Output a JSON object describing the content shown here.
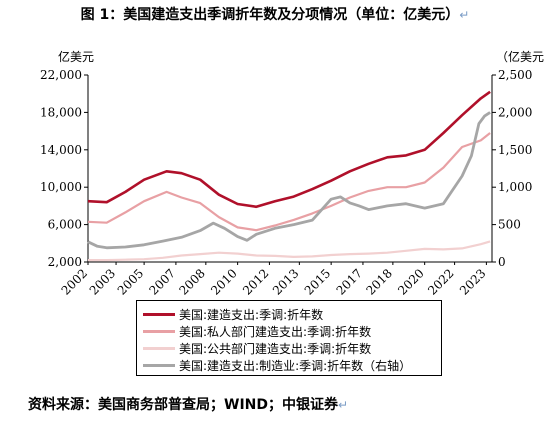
{
  "title": "图 1：美国建造支出季调折年数及分项情况（单位：亿美元）",
  "source": "资料来源：美国商务部普查局；WIND；中银证券",
  "para_mark": "↵",
  "chart_data": {
    "type": "line",
    "left_axis": {
      "unit": "亿美元",
      "range": [
        2000,
        22000
      ],
      "ticks": [
        2000,
        6000,
        10000,
        14000,
        18000,
        22000
      ],
      "tick_labels": [
        "2,000",
        "6,000",
        "10,000",
        "14,000",
        "18,000",
        "22,000"
      ]
    },
    "right_axis": {
      "unit": "（亿美元",
      "range": [
        0,
        2500
      ],
      "ticks": [
        0,
        500,
        1000,
        1500,
        2000,
        2500
      ],
      "tick_labels": [
        "0",
        "500",
        "1,000",
        "1,500",
        "2,000",
        "2,500"
      ]
    },
    "x_axis": {
      "range": [
        2002,
        2023.6
      ],
      "tick_labels": [
        "2002",
        "2003",
        "2005",
        "2007",
        "2008",
        "2010",
        "2012",
        "2013",
        "2015",
        "2017",
        "2018",
        "2020",
        "2022",
        "2023"
      ],
      "tick_positions": [
        2002,
        2003.5,
        2005,
        2006.7,
        2008.3,
        2010,
        2011.7,
        2013.3,
        2015,
        2016.7,
        2018.3,
        2020,
        2021.6,
        2023.3
      ]
    },
    "grid": false,
    "legend_position": "bottom",
    "series": [
      {
        "name": "美国:建造支出:季调:折年数",
        "color": "#b0102a",
        "axis": "left",
        "points": [
          [
            2002,
            8500
          ],
          [
            2003,
            8400
          ],
          [
            2004,
            9500
          ],
          [
            2005,
            10800
          ],
          [
            2006.2,
            11700
          ],
          [
            2007,
            11500
          ],
          [
            2008,
            10800
          ],
          [
            2009,
            9200
          ],
          [
            2010,
            8200
          ],
          [
            2011,
            7900
          ],
          [
            2012,
            8500
          ],
          [
            2013,
            9000
          ],
          [
            2014,
            9800
          ],
          [
            2015,
            10700
          ],
          [
            2016,
            11700
          ],
          [
            2017,
            12500
          ],
          [
            2018,
            13200
          ],
          [
            2019,
            13400
          ],
          [
            2020,
            14000
          ],
          [
            2021,
            15800
          ],
          [
            2022,
            17700
          ],
          [
            2023,
            19500
          ],
          [
            2023.5,
            20200
          ]
        ]
      },
      {
        "name": "美国:私人部门建造支出:季调:折年数",
        "color": "#e8a0a4",
        "axis": "left",
        "points": [
          [
            2002,
            6300
          ],
          [
            2003,
            6200
          ],
          [
            2004,
            7300
          ],
          [
            2005,
            8500
          ],
          [
            2006.2,
            9500
          ],
          [
            2007,
            8900
          ],
          [
            2008,
            8300
          ],
          [
            2009,
            6800
          ],
          [
            2010,
            5700
          ],
          [
            2011,
            5400
          ],
          [
            2012,
            5900
          ],
          [
            2013,
            6500
          ],
          [
            2014,
            7200
          ],
          [
            2015,
            8000
          ],
          [
            2016,
            8900
          ],
          [
            2017,
            9600
          ],
          [
            2018,
            10000
          ],
          [
            2019,
            10000
          ],
          [
            2020,
            10500
          ],
          [
            2021,
            12100
          ],
          [
            2022,
            14300
          ],
          [
            2023,
            15000
          ],
          [
            2023.5,
            15800
          ]
        ]
      },
      {
        "name": "美国:公共部门建造支出:季调:折年数",
        "color": "#f2d0d0",
        "axis": "left",
        "points": [
          [
            2002,
            2200
          ],
          [
            2003,
            2200
          ],
          [
            2004,
            2250
          ],
          [
            2005,
            2300
          ],
          [
            2006,
            2450
          ],
          [
            2007,
            2700
          ],
          [
            2008,
            2850
          ],
          [
            2009,
            3000
          ],
          [
            2010,
            2900
          ],
          [
            2011,
            2700
          ],
          [
            2012,
            2650
          ],
          [
            2013,
            2550
          ],
          [
            2014,
            2600
          ],
          [
            2015,
            2750
          ],
          [
            2016,
            2850
          ],
          [
            2017,
            2900
          ],
          [
            2018,
            3000
          ],
          [
            2019,
            3200
          ],
          [
            2020,
            3400
          ],
          [
            2021,
            3350
          ],
          [
            2022,
            3450
          ],
          [
            2023,
            3900
          ],
          [
            2023.5,
            4200
          ]
        ]
      },
      {
        "name": "美国:建造支出:制造业:季调:折年数（右轴）",
        "color": "#a6a6a6",
        "axis": "right",
        "points": [
          [
            2002,
            270
          ],
          [
            2002.5,
            210
          ],
          [
            2003,
            190
          ],
          [
            2004,
            200
          ],
          [
            2005,
            230
          ],
          [
            2006,
            280
          ],
          [
            2007,
            330
          ],
          [
            2008,
            420
          ],
          [
            2008.7,
            520
          ],
          [
            2009.3,
            450
          ],
          [
            2010,
            340
          ],
          [
            2010.5,
            290
          ],
          [
            2011,
            370
          ],
          [
            2012,
            450
          ],
          [
            2013,
            500
          ],
          [
            2014,
            560
          ],
          [
            2015,
            840
          ],
          [
            2015.5,
            870
          ],
          [
            2016,
            790
          ],
          [
            2016.5,
            750
          ],
          [
            2017,
            700
          ],
          [
            2018,
            750
          ],
          [
            2019,
            780
          ],
          [
            2020,
            720
          ],
          [
            2021,
            780
          ],
          [
            2022,
            1150
          ],
          [
            2022.5,
            1420
          ],
          [
            2022.9,
            1850
          ],
          [
            2023.2,
            1950
          ],
          [
            2023.5,
            2000
          ]
        ]
      }
    ]
  }
}
